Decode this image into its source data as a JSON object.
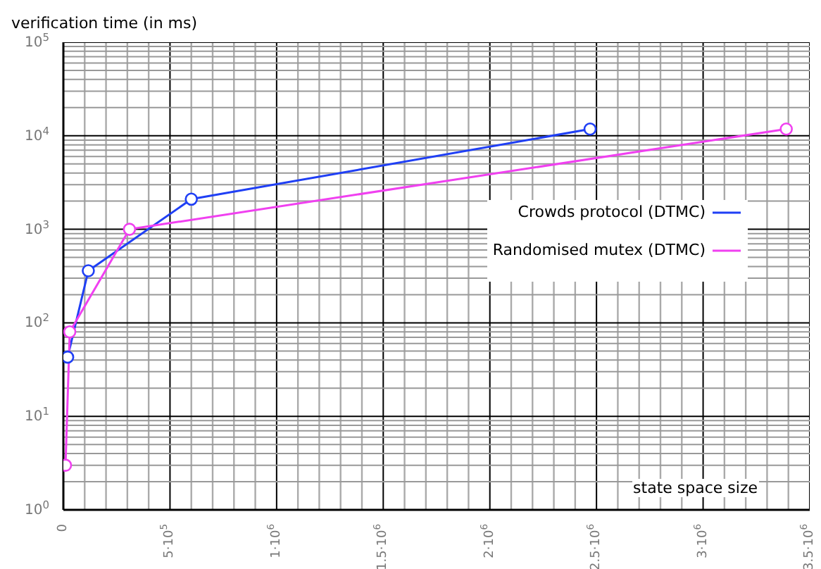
{
  "chart_data": {
    "type": "line",
    "xlabel": "state space size",
    "ylabel": "verification time (in ms)",
    "log": "y",
    "grid": true,
    "legend": "top right",
    "marker": "circle",
    "line_style": "solid",
    "xlim": [
      0,
      3500000
    ],
    "ylim": [
      1,
      100000
    ],
    "xticks": [
      {
        "value": 0,
        "label": "0"
      },
      {
        "value": 100000,
        "label": null
      },
      {
        "value": 200000,
        "label": null
      },
      {
        "value": 300000,
        "label": null
      },
      {
        "value": 400000,
        "label": null
      },
      {
        "value": 500000,
        "label": "5·10$^{5}$"
      },
      {
        "value": 600000,
        "label": null
      },
      {
        "value": 700000,
        "label": null
      },
      {
        "value": 800000,
        "label": null
      },
      {
        "value": 900000,
        "label": null
      },
      {
        "value": 1000000,
        "label": "1·10$^{6}$"
      },
      {
        "value": 1100000,
        "label": null
      },
      {
        "value": 1200000,
        "label": null
      },
      {
        "value": 1300000,
        "label": null
      },
      {
        "value": 1400000,
        "label": null
      },
      {
        "value": 1500000,
        "label": "1.5·10$^{6}$"
      },
      {
        "value": 1600000,
        "label": null
      },
      {
        "value": 1700000,
        "label": null
      },
      {
        "value": 1800000,
        "label": null
      },
      {
        "value": 1900000,
        "label": null
      },
      {
        "value": 2000000,
        "label": "2·10$^{6}$"
      },
      {
        "value": 2100000,
        "label": null
      },
      {
        "value": 2200000,
        "label": null
      },
      {
        "value": 2300000,
        "label": null
      },
      {
        "value": 2400000,
        "label": null
      },
      {
        "value": 2500000,
        "label": "2.5·10$^{6}$"
      },
      {
        "value": 2600000,
        "label": null
      },
      {
        "value": 2700000,
        "label": null
      },
      {
        "value": 2800000,
        "label": null
      },
      {
        "value": 2900000,
        "label": null
      },
      {
        "value": 3000000,
        "label": "3·10$^{6}$"
      },
      {
        "value": 3100000,
        "label": null
      },
      {
        "value": 3200000,
        "label": null
      },
      {
        "value": 3300000,
        "label": null
      },
      {
        "value": 3400000,
        "label": null
      },
      {
        "value": 3500000,
        "label": "3.5·10$^{6}$"
      }
    ],
    "yticks": [
      {
        "value": 1,
        "label": "10$^{0}$"
      },
      {
        "value": 2,
        "label": null
      },
      {
        "value": 3,
        "label": null
      },
      {
        "value": 4,
        "label": null
      },
      {
        "value": 5,
        "label": null
      },
      {
        "value": 6,
        "label": null
      },
      {
        "value": 7,
        "label": null
      },
      {
        "value": 8,
        "label": null
      },
      {
        "value": 9,
        "label": null
      },
      {
        "value": 10,
        "label": "10$^{1}$"
      },
      {
        "value": 20,
        "label": null
      },
      {
        "value": 30,
        "label": null
      },
      {
        "value": 40,
        "label": null
      },
      {
        "value": 50,
        "label": null
      },
      {
        "value": 60,
        "label": null
      },
      {
        "value": 70,
        "label": null
      },
      {
        "value": 80,
        "label": null
      },
      {
        "value": 90,
        "label": null
      },
      {
        "value": 100,
        "label": "10$^{2}$"
      },
      {
        "value": 200,
        "label": null
      },
      {
        "value": 300,
        "label": null
      },
      {
        "value": 400,
        "label": null
      },
      {
        "value": 500,
        "label": null
      },
      {
        "value": 600,
        "label": null
      },
      {
        "value": 700,
        "label": null
      },
      {
        "value": 800,
        "label": null
      },
      {
        "value": 900,
        "label": null
      },
      {
        "value": 1000,
        "label": "10$^{3}$"
      },
      {
        "value": 2000,
        "label": null
      },
      {
        "value": 3000,
        "label": null
      },
      {
        "value": 4000,
        "label": null
      },
      {
        "value": 5000,
        "label": null
      },
      {
        "value": 6000,
        "label": null
      },
      {
        "value": 7000,
        "label": null
      },
      {
        "value": 8000,
        "label": null
      },
      {
        "value": 9000,
        "label": null
      },
      {
        "value": 10000,
        "label": "10$^{4}$"
      },
      {
        "value": 20000,
        "label": null
      },
      {
        "value": 30000,
        "label": null
      },
      {
        "value": 40000,
        "label": null
      },
      {
        "value": 50000,
        "label": null
      },
      {
        "value": 60000,
        "label": null
      },
      {
        "value": 70000,
        "label": null
      },
      {
        "value": 80000,
        "label": null
      },
      {
        "value": 90000,
        "label": null
      },
      {
        "value": 100000,
        "label": "10$^{5}$"
      }
    ],
    "series": [
      {
        "name": "Crowds protocol (DTMC)",
        "color": "#1f3ff5",
        "x": [
          20000,
          117000,
          600000,
          2470000
        ],
        "values": [
          43,
          360,
          2100,
          11800
        ]
      },
      {
        "name": "Randomised mutex (DTMC)",
        "color": "#f040f0",
        "x": [
          10000,
          30000,
          310000,
          3390000
        ],
        "values": [
          3,
          80,
          1000,
          11800
        ]
      }
    ]
  }
}
